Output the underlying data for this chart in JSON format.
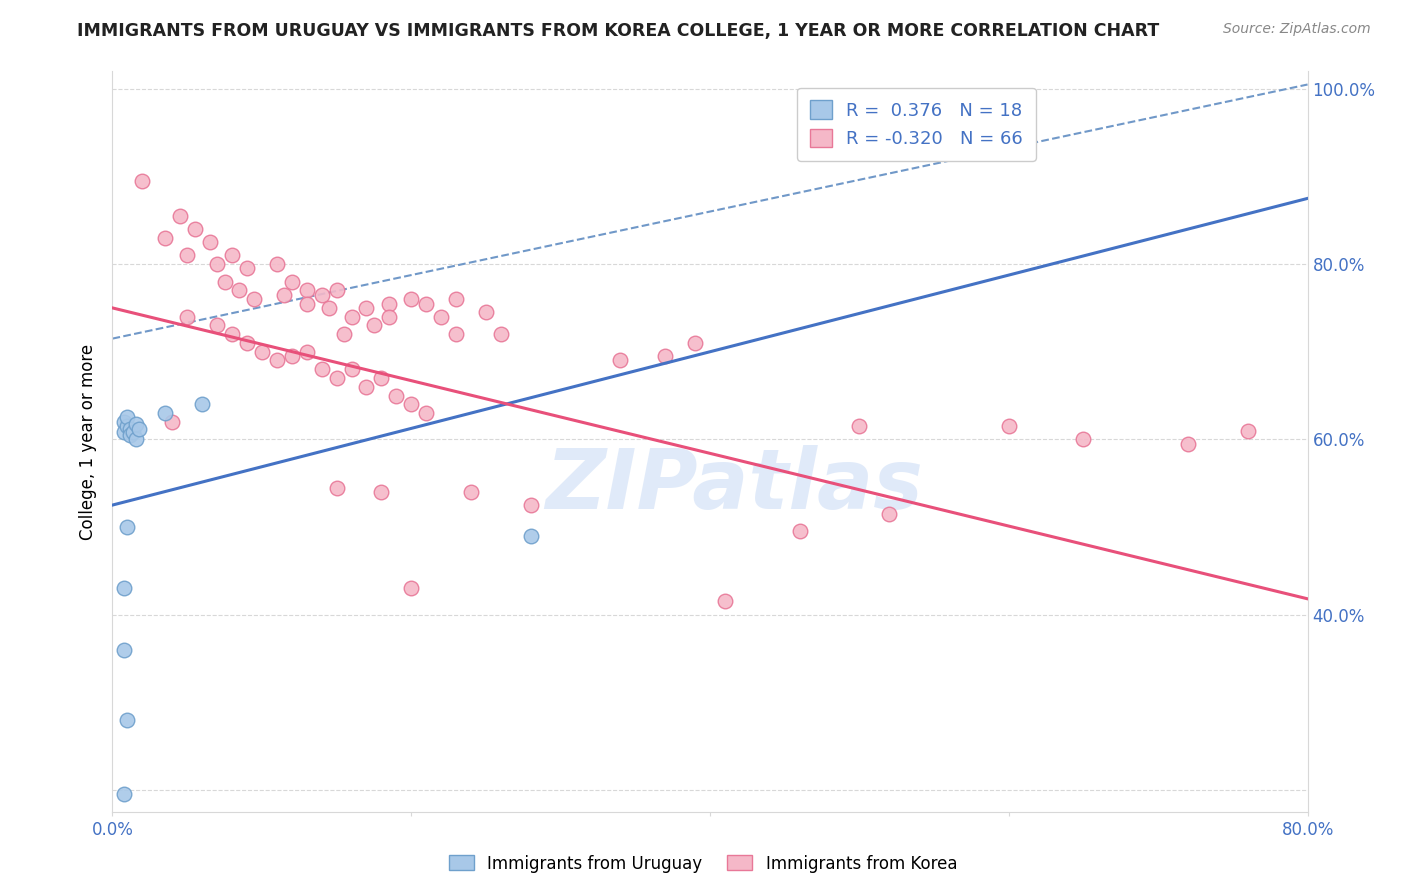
{
  "title": "IMMIGRANTS FROM URUGUAY VS IMMIGRANTS FROM KOREA COLLEGE, 1 YEAR OR MORE CORRELATION CHART",
  "source": "Source: ZipAtlas.com",
  "ylabel_left": "College, 1 year or more",
  "watermark": "ZIPatlas",
  "legend_entries": [
    {
      "label": "R =  0.376   N = 18",
      "color": "#aec6e8"
    },
    {
      "label": "R = -0.320   N = 66",
      "color": "#f4a7b9"
    }
  ],
  "uruguay_scatter": [
    [
      0.008,
      0.62
    ],
    [
      0.008,
      0.608
    ],
    [
      0.01,
      0.615
    ],
    [
      0.01,
      0.625
    ],
    [
      0.012,
      0.612
    ],
    [
      0.012,
      0.605
    ],
    [
      0.014,
      0.608
    ],
    [
      0.016,
      0.618
    ],
    [
      0.016,
      0.6
    ],
    [
      0.018,
      0.612
    ],
    [
      0.035,
      0.63
    ],
    [
      0.06,
      0.64
    ],
    [
      0.01,
      0.5
    ],
    [
      0.008,
      0.43
    ],
    [
      0.008,
      0.36
    ],
    [
      0.28,
      0.49
    ],
    [
      0.01,
      0.28
    ],
    [
      0.008,
      0.195
    ]
  ],
  "korea_scatter": [
    [
      0.02,
      0.895
    ],
    [
      0.035,
      0.83
    ],
    [
      0.045,
      0.855
    ],
    [
      0.055,
      0.84
    ],
    [
      0.065,
      0.825
    ],
    [
      0.05,
      0.81
    ],
    [
      0.07,
      0.8
    ],
    [
      0.08,
      0.81
    ],
    [
      0.09,
      0.795
    ],
    [
      0.075,
      0.78
    ],
    [
      0.085,
      0.77
    ],
    [
      0.095,
      0.76
    ],
    [
      0.11,
      0.8
    ],
    [
      0.12,
      0.78
    ],
    [
      0.13,
      0.77
    ],
    [
      0.115,
      0.765
    ],
    [
      0.13,
      0.755
    ],
    [
      0.14,
      0.765
    ],
    [
      0.15,
      0.77
    ],
    [
      0.145,
      0.75
    ],
    [
      0.16,
      0.74
    ],
    [
      0.155,
      0.72
    ],
    [
      0.17,
      0.75
    ],
    [
      0.175,
      0.73
    ],
    [
      0.185,
      0.755
    ],
    [
      0.185,
      0.74
    ],
    [
      0.2,
      0.76
    ],
    [
      0.21,
      0.755
    ],
    [
      0.22,
      0.74
    ],
    [
      0.23,
      0.76
    ],
    [
      0.25,
      0.745
    ],
    [
      0.23,
      0.72
    ],
    [
      0.26,
      0.72
    ],
    [
      0.05,
      0.74
    ],
    [
      0.07,
      0.73
    ],
    [
      0.08,
      0.72
    ],
    [
      0.09,
      0.71
    ],
    [
      0.1,
      0.7
    ],
    [
      0.11,
      0.69
    ],
    [
      0.12,
      0.695
    ],
    [
      0.13,
      0.7
    ],
    [
      0.14,
      0.68
    ],
    [
      0.15,
      0.67
    ],
    [
      0.16,
      0.68
    ],
    [
      0.17,
      0.66
    ],
    [
      0.18,
      0.67
    ],
    [
      0.19,
      0.65
    ],
    [
      0.2,
      0.64
    ],
    [
      0.21,
      0.63
    ],
    [
      0.34,
      0.69
    ],
    [
      0.37,
      0.695
    ],
    [
      0.39,
      0.71
    ],
    [
      0.5,
      0.615
    ],
    [
      0.6,
      0.615
    ],
    [
      0.65,
      0.6
    ],
    [
      0.72,
      0.595
    ],
    [
      0.76,
      0.61
    ],
    [
      0.04,
      0.62
    ],
    [
      0.15,
      0.545
    ],
    [
      0.18,
      0.54
    ],
    [
      0.24,
      0.54
    ],
    [
      0.28,
      0.525
    ],
    [
      0.46,
      0.495
    ],
    [
      0.52,
      0.515
    ],
    [
      0.2,
      0.43
    ],
    [
      0.41,
      0.415
    ]
  ],
  "uruguay_line": {
    "x0": 0.0,
    "x1": 0.8,
    "y0": 0.525,
    "y1": 0.875
  },
  "korea_line": {
    "x0": 0.0,
    "x1": 0.8,
    "y0": 0.75,
    "y1": 0.418
  },
  "dashed_line": {
    "x0": 0.0,
    "x1": 0.8,
    "y0": 0.715,
    "y1": 1.005
  },
  "xlim": [
    0.0,
    0.8
  ],
  "ylim": [
    0.175,
    1.02
  ],
  "scatter_size": 110,
  "uruguay_color": "#a8c8e8",
  "korea_color": "#f5b8c8",
  "uruguay_edge": "#6fa0cc",
  "korea_edge": "#e87898",
  "trendline_blue": "#4472c4",
  "trendline_pink": "#e8507a",
  "dashed_color": "#7098c8",
  "grid_color": "#d8d8d8",
  "title_color": "#222222",
  "axis_label_color": "#4472c4",
  "watermark_color": "#c8daf5",
  "right_yticks": [
    0.4,
    0.6,
    0.8,
    1.0
  ],
  "right_yticklabels": [
    "40.0%",
    "60.0%",
    "80.0%",
    "100.0%"
  ]
}
